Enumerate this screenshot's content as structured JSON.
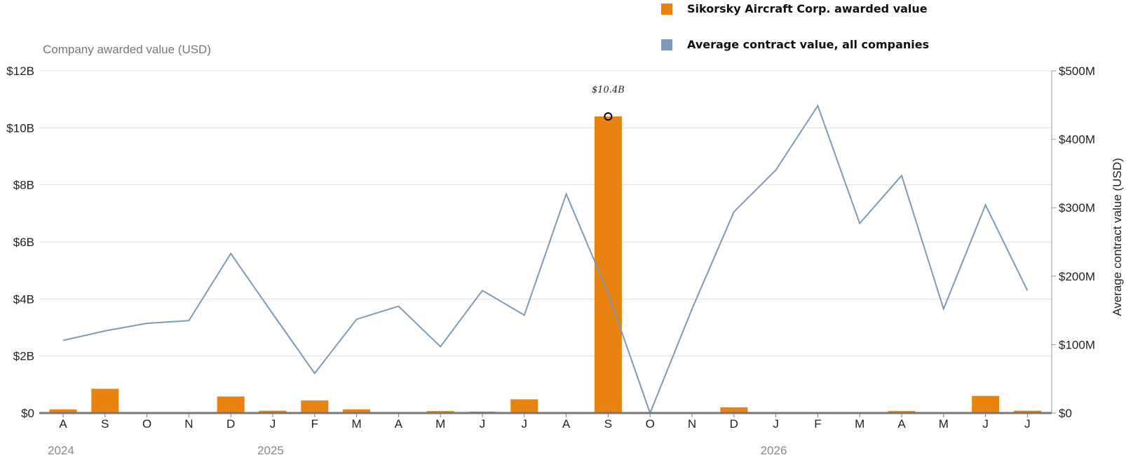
{
  "chart_data": {
    "type": "bar",
    "categories": [
      "A",
      "S",
      "O",
      "N",
      "D",
      "J",
      "F",
      "M",
      "A",
      "M",
      "J",
      "J",
      "A",
      "S",
      "O",
      "N",
      "D",
      "J",
      "F",
      "M",
      "A",
      "M",
      "J",
      "J"
    ],
    "year_labels": [
      {
        "index": 0,
        "label": "2024"
      },
      {
        "index": 5,
        "label": "2025"
      },
      {
        "index": 17,
        "label": "2026"
      }
    ],
    "series": [
      {
        "name": "Sikorsky Aircraft Corp. awarded value",
        "type": "bar",
        "axis": "left",
        "color": "#E8830F",
        "values": [
          0.13,
          0.85,
          0,
          0,
          0.58,
          0.08,
          0.44,
          0.13,
          0,
          0.07,
          0.05,
          0.48,
          0,
          10.4,
          0,
          0,
          0.2,
          0,
          0,
          0,
          0.07,
          0,
          0.6,
          0.08
        ]
      },
      {
        "name": "Average contract value, all companies",
        "type": "line",
        "axis": "right",
        "color": "#7B9BB8",
        "values": [
          106,
          120,
          131,
          135,
          233,
          145,
          58,
          137,
          156,
          97,
          179,
          143,
          320,
          175,
          0,
          152,
          294,
          355,
          449,
          277,
          347,
          152,
          304,
          179
        ]
      }
    ],
    "y_left": {
      "label": "Company awarded value (USD)",
      "min": 0,
      "max": 12,
      "ticks": [
        "$0",
        "$2B",
        "$4B",
        "$6B",
        "$8B",
        "$10B",
        "$12B"
      ]
    },
    "y_right": {
      "label": "Average contract value (USD)",
      "min": 0,
      "max": 500,
      "ticks": [
        "$0",
        "$100M",
        "$200M",
        "$300M",
        "$400M",
        "$500M"
      ]
    },
    "annotation": {
      "index": 13,
      "text": "$10.4B"
    },
    "grid": true,
    "legend_position": "top"
  }
}
